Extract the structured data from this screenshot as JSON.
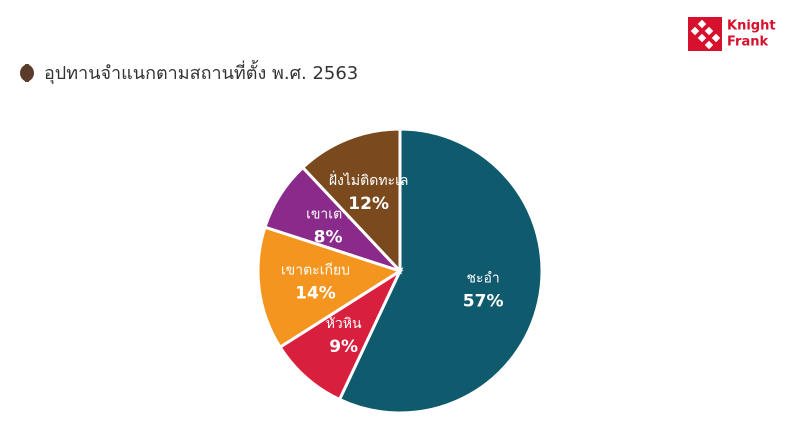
{
  "chart_data": {
    "type": "pie",
    "title": "อุปทานจำแนกตามสถานที่ตั้ง พ.ศ. 2563",
    "categories": [
      "ชะอำ",
      "หัวหิน",
      "เขาตะเกียบ",
      "เขาเต่า",
      "ฝั่งไม่ติดทะเล"
    ],
    "values": [
      57,
      9,
      14,
      8,
      12
    ],
    "value_labels": [
      "57%",
      "9%",
      "14%",
      "8%",
      "12%"
    ],
    "colors": [
      "#0f5a6d",
      "#d81f3e",
      "#f4951f",
      "#8a2a8b",
      "#7a4a1e"
    ]
  },
  "logo": {
    "line1": "Knight",
    "line2": "Frank"
  }
}
